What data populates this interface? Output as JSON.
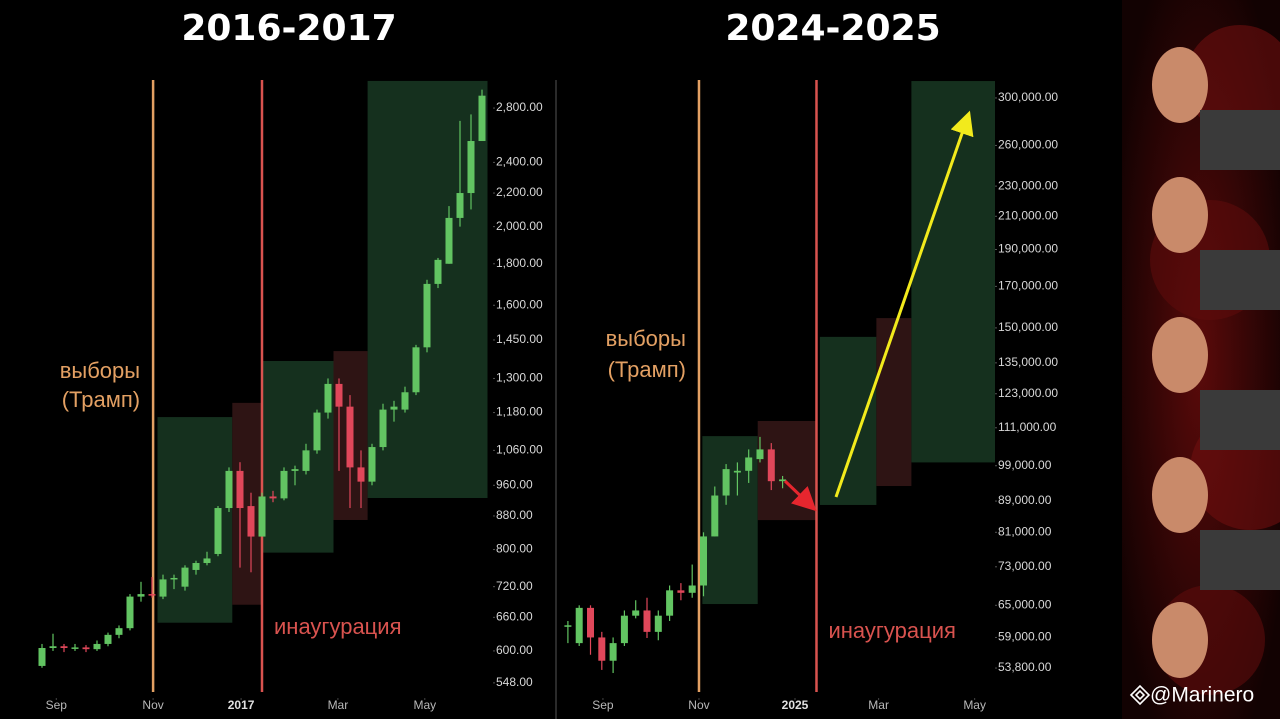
{
  "watermark": "@Marinero",
  "chart_data": [
    {
      "type": "candlestick",
      "title": "2016-2017",
      "log_scale": true,
      "up_color": "#62c462",
      "down_color": "#e0475a",
      "xlim": [
        -1,
        41
      ],
      "xticks": [
        {
          "value": 1.3,
          "label": "Sep"
        },
        {
          "value": 10.1,
          "label": "Nov"
        },
        {
          "value": 18.1,
          "label": "2017"
        },
        {
          "value": 26.9,
          "label": "Mar"
        },
        {
          "value": 34.8,
          "label": "May"
        }
      ],
      "ylim": [
        522,
        3032
      ],
      "yticks": [
        {
          "value": 548,
          "label": "548.00"
        },
        {
          "value": 600,
          "label": "600.00"
        },
        {
          "value": 660,
          "label": "660.00"
        },
        {
          "value": 720,
          "label": "720.00"
        },
        {
          "value": 800,
          "label": "800.00"
        },
        {
          "value": 880,
          "label": "880.00"
        },
        {
          "value": 960,
          "label": "960.00"
        },
        {
          "value": 1060,
          "label": "1,060.00"
        },
        {
          "value": 1180,
          "label": "1,180.00"
        },
        {
          "value": 1300,
          "label": "1,300.00"
        },
        {
          "value": 1450,
          "label": "1,450.00"
        },
        {
          "value": 1600,
          "label": "1,600.00"
        },
        {
          "value": 1800,
          "label": "1,800.00"
        },
        {
          "value": 2000,
          "label": "2,000.00"
        },
        {
          "value": 2200,
          "label": "2,200.00"
        },
        {
          "value": 2400,
          "label": "2,400.00"
        },
        {
          "value": 2800,
          "label": "2,800.00"
        }
      ],
      "x": [
        0,
        1,
        2,
        3,
        4,
        5,
        6,
        7,
        8,
        9,
        10,
        11,
        12,
        13,
        14,
        15,
        16,
        17,
        18,
        19,
        20,
        21,
        22,
        23,
        24,
        25,
        26,
        27,
        28,
        29,
        30,
        31,
        32,
        33,
        34,
        35,
        36,
        37,
        38,
        39,
        40
      ],
      "open": [
        575,
        605,
        608,
        605,
        606,
        603,
        612,
        628,
        640,
        700,
        705,
        700,
        735,
        720,
        755,
        770,
        790,
        900,
        1000,
        905,
        830,
        930,
        925,
        1000,
        1000,
        1060,
        1180,
        1280,
        1200,
        1010,
        970,
        1070,
        1190,
        1190,
        1250,
        1420,
        1700,
        1800,
        2050,
        2200,
        2550
      ],
      "high": [
        612,
        630,
        612,
        612,
        610,
        618,
        632,
        645,
        705,
        730,
        740,
        745,
        745,
        765,
        775,
        795,
        905,
        1010,
        1025,
        940,
        940,
        945,
        1010,
        1015,
        1080,
        1190,
        1300,
        1300,
        1240,
        1060,
        1080,
        1210,
        1220,
        1270,
        1430,
        1720,
        1830,
        2120,
        2700,
        2750,
        2950
      ],
      "low": [
        572,
        600,
        598,
        600,
        598,
        600,
        608,
        622,
        636,
        690,
        698,
        695,
        715,
        712,
        745,
        765,
        785,
        890,
        760,
        750,
        830,
        915,
        920,
        960,
        990,
        1050,
        1160,
        1000,
        900,
        900,
        960,
        1060,
        1150,
        1180,
        1240,
        1400,
        1680,
        1800,
        2000,
        2100,
        2550
      ],
      "close": [
        605,
        608,
        605,
        606,
        603,
        612,
        628,
        640,
        700,
        705,
        703,
        735,
        738,
        760,
        770,
        780,
        900,
        1000,
        900,
        830,
        930,
        925,
        1000,
        1005,
        1060,
        1180,
        1280,
        1200,
        1010,
        970,
        1070,
        1190,
        1200,
        1250,
        1420,
        1700,
        1820,
        2050,
        2200,
        2550,
        2900
      ],
      "events": [
        {
          "x": 10.1,
          "color": "#e3a063",
          "label": [
            "выборы",
            "(Трамп)"
          ]
        },
        {
          "x": 20,
          "color": "#d9534f",
          "label": [
            "инаугурация"
          ]
        }
      ],
      "zones": [
        {
          "x": [
            10.5,
            17.3
          ],
          "y": [
            650,
            1165
          ],
          "color": "#15301e"
        },
        {
          "x": [
            17.3,
            20
          ],
          "y": [
            684,
            1213
          ],
          "color": "#2e1414"
        },
        {
          "x": [
            20,
            26.5
          ],
          "y": [
            793,
            1366
          ],
          "color": "#15301e"
        },
        {
          "x": [
            26.5,
            29.6
          ],
          "y": [
            870,
            1405
          ],
          "color": "#2e1414"
        },
        {
          "x": [
            29.6,
            40.5
          ],
          "y": [
            926,
            3024
          ],
          "color": "#15301e"
        }
      ]
    },
    {
      "type": "candlestick",
      "title": "2024-2025",
      "log_scale": true,
      "up_color": "#62c462",
      "down_color": "#e0475a",
      "xlim": [
        -0.7,
        37.8
      ],
      "xticks": [
        {
          "value": 3.1,
          "label": "Sep"
        },
        {
          "value": 11.6,
          "label": "Nov"
        },
        {
          "value": 20.1,
          "label": "2025"
        },
        {
          "value": 27.5,
          "label": "Mar"
        },
        {
          "value": 36.0,
          "label": "May"
        }
      ],
      "ylim": [
        48860,
        316700
      ],
      "yticks": [
        {
          "value": 53800,
          "label": "53,800.00"
        },
        {
          "value": 59000,
          "label": "59,000.00"
        },
        {
          "value": 65000,
          "label": "65,000.00"
        },
        {
          "value": 73000,
          "label": "73,000.00"
        },
        {
          "value": 81000,
          "label": "81,000.00"
        },
        {
          "value": 89000,
          "label": "89,000.00"
        },
        {
          "value": 99000,
          "label": "99,000.00"
        },
        {
          "value": 111000,
          "label": "111,000.00"
        },
        {
          "value": 123000,
          "label": "123,000.00"
        },
        {
          "value": 135000,
          "label": "135,000.00"
        },
        {
          "value": 150000,
          "label": "150,000.00"
        },
        {
          "value": 170000,
          "label": "170,000.00"
        },
        {
          "value": 190000,
          "label": "190,000.00"
        },
        {
          "value": 210000,
          "label": "210,000.00"
        },
        {
          "value": 230000,
          "label": "230,000.00"
        },
        {
          "value": 260000,
          "label": "260,000.00"
        },
        {
          "value": 300000,
          "label": "300,000.00"
        }
      ],
      "x": [
        0,
        1,
        2,
        3,
        4,
        5,
        6,
        7,
        8,
        9,
        10,
        11,
        12,
        13,
        14,
        15,
        16,
        17,
        18,
        19
      ],
      "open": [
        61000,
        58000,
        64500,
        59000,
        55000,
        58000,
        63000,
        64000,
        60000,
        63000,
        68000,
        67500,
        69000,
        80000,
        90500,
        97000,
        97500,
        101000,
        104000,
        94500
      ],
      "high": [
        62000,
        65000,
        65000,
        60000,
        59000,
        64000,
        66000,
        66500,
        64000,
        69000,
        69500,
        73500,
        81000,
        93000,
        99500,
        100000,
        104000,
        108000,
        106000,
        96000
      ],
      "low": [
        58000,
        57500,
        56000,
        53500,
        53000,
        57500,
        62500,
        58900,
        58500,
        62000,
        66000,
        66500,
        66800,
        80000,
        88000,
        90500,
        94000,
        100000,
        92000,
        92500
      ],
      "close": [
        61200,
        64500,
        59000,
        55000,
        58000,
        63000,
        64000,
        60000,
        63000,
        68000,
        67500,
        69000,
        80000,
        90500,
        98000,
        97500,
        101500,
        104000,
        94500,
        95000
      ],
      "events": [
        {
          "x": 11.6,
          "color": "#e3a063",
          "label": [
            "выборы",
            "(Трамп)"
          ]
        },
        {
          "x": 22.0,
          "color": "#d9534f",
          "label": [
            "инаугурация"
          ]
        }
      ],
      "zones": [
        {
          "x": [
            11.9,
            16.8
          ],
          "y": [
            65250,
            108250
          ],
          "color": "#15301e"
        },
        {
          "x": [
            16.8,
            22.0
          ],
          "y": [
            84040,
            113300
          ],
          "color": "#2e1414"
        },
        {
          "x": [
            22.3,
            27.3
          ],
          "y": [
            87960,
            146000
          ],
          "color": "#15301e"
        },
        {
          "x": [
            27.3,
            30.4
          ],
          "y": [
            93130,
            154500
          ],
          "color": "#2e1414"
        },
        {
          "x": [
            30.4,
            37.8
          ],
          "y": [
            100000,
            315700
          ],
          "color": "#15301e"
        }
      ]
    }
  ]
}
